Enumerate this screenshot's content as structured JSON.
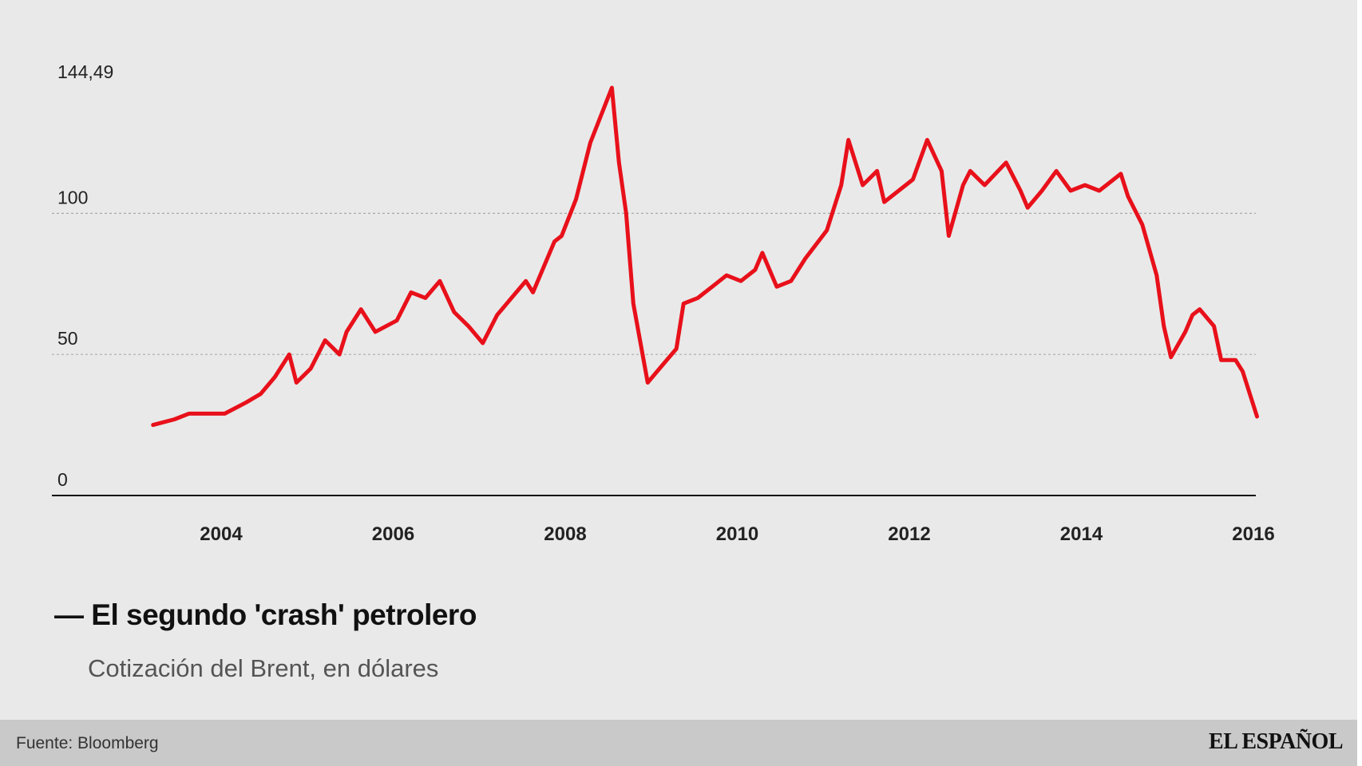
{
  "chart_data": {
    "type": "line",
    "title": "El segundo 'crash' petrolero",
    "subtitle": "Cotización del Brent, en dólares",
    "xlabel": "",
    "ylabel": "",
    "ylim": [
      0,
      144.49
    ],
    "y_ticks": [
      "0",
      "50",
      "100",
      "144,49"
    ],
    "y_tick_values": [
      0,
      50,
      100,
      144.49
    ],
    "x_ticks": [
      "2004",
      "2006",
      "2008",
      "2010",
      "2012",
      "2014",
      "2016"
    ],
    "grid": "dotted horizontal at 50 and 100",
    "line_color": "#e8101a",
    "series": [
      {
        "x": [
          "2003-03",
          "2003-06",
          "2003-08",
          "2004-01",
          "2004-04",
          "2004-06",
          "2004-08",
          "2004-10",
          "2004-11",
          "2005-01",
          "2005-03",
          "2005-05",
          "2005-06",
          "2005-08",
          "2005-10",
          "2006-01",
          "2006-03",
          "2006-05",
          "2006-07",
          "2006-09",
          "2006-11",
          "2007-01",
          "2007-03",
          "2007-05",
          "2007-07",
          "2007-08",
          "2007-11",
          "2007-12",
          "2008-02",
          "2008-04",
          "2008-07",
          "2008-08",
          "2008-09",
          "2008-10",
          "2008-12",
          "2009-02",
          "2009-04",
          "2009-05",
          "2009-07",
          "2009-09",
          "2009-11",
          "2010-01",
          "2010-03",
          "2010-04",
          "2010-06",
          "2010-08",
          "2010-10",
          "2011-01",
          "2011-03",
          "2011-04",
          "2011-06",
          "2011-08",
          "2011-09",
          "2011-12",
          "2012-01",
          "2012-03",
          "2012-05",
          "2012-06",
          "2012-08",
          "2012-09",
          "2012-11",
          "2013-02",
          "2013-04",
          "2013-05",
          "2013-07",
          "2013-09",
          "2013-11",
          "2014-01",
          "2014-03",
          "2014-04",
          "2014-06",
          "2014-07",
          "2014-09",
          "2014-11",
          "2014-12",
          "2015-01",
          "2015-03",
          "2015-04",
          "2015-05",
          "2015-07",
          "2015-08",
          "2015-10",
          "2015-11",
          "2015-12",
          "2016-01"
        ],
        "values": [
          25,
          27,
          29,
          29,
          33,
          36,
          42,
          50,
          40,
          45,
          55,
          50,
          58,
          66,
          58,
          62,
          72,
          70,
          76,
          65,
          60,
          54,
          64,
          70,
          76,
          72,
          90,
          92,
          105,
          125,
          144.49,
          118,
          100,
          68,
          40,
          46,
          52,
          68,
          70,
          74,
          78,
          76,
          80,
          86,
          74,
          76,
          84,
          94,
          110,
          126,
          110,
          115,
          104,
          110,
          112,
          126,
          115,
          92,
          110,
          115,
          110,
          118,
          108,
          102,
          108,
          115,
          108,
          110,
          108,
          110,
          114,
          106,
          96,
          78,
          60,
          49,
          58,
          64,
          66,
          60,
          48,
          48,
          44,
          36,
          28
        ]
      }
    ]
  },
  "footer": {
    "source": "Fuente: Bloomberg",
    "logo": "EL ESPAÑOL"
  }
}
